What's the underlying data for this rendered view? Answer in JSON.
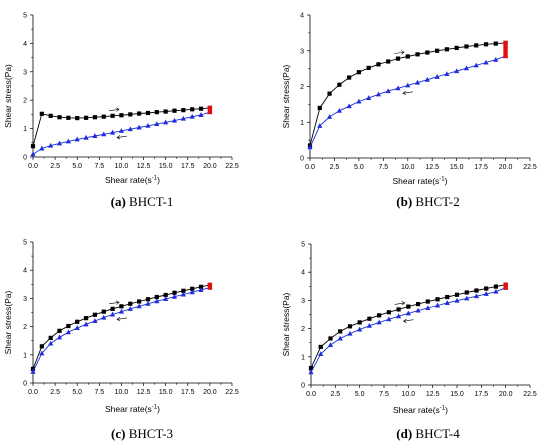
{
  "chart_data": [
    {
      "type": "line",
      "caption_letter": "(a)",
      "caption_text": " BHCT-1",
      "xlabel": "Shear rate(s",
      "xlabel_sup": "-1",
      "xlabel_end": ")",
      "ylabel": "Shear stress(Pa)",
      "xlim": [
        0,
        22.5
      ],
      "ylim": [
        0,
        5
      ],
      "xticks": [
        "0.0",
        "2.5",
        "5.0",
        "7.5",
        "10.0",
        "12.5",
        "15.0",
        "17.5",
        "20.0",
        "22.5"
      ],
      "yticks": [
        "0",
        "1",
        "2",
        "3",
        "4",
        "5"
      ],
      "series": [
        {
          "marker": "square",
          "color": "#000000",
          "x": [
            0,
            1,
            2,
            3,
            4,
            5,
            6,
            7,
            8,
            9,
            10,
            11,
            12,
            13,
            14,
            15,
            16,
            17,
            18,
            19,
            20
          ],
          "y": [
            0.38,
            1.52,
            1.45,
            1.4,
            1.38,
            1.37,
            1.38,
            1.4,
            1.42,
            1.45,
            1.47,
            1.5,
            1.53,
            1.55,
            1.58,
            1.6,
            1.63,
            1.65,
            1.68,
            1.7,
            1.73
          ]
        },
        {
          "marker": "triangle",
          "color": "#1f2fd8",
          "x": [
            0,
            1,
            2,
            3,
            4,
            5,
            6,
            7,
            8,
            9,
            10,
            11,
            12,
            13,
            14,
            15,
            16,
            17,
            18,
            19,
            20
          ],
          "y": [
            0.1,
            0.3,
            0.4,
            0.48,
            0.55,
            0.62,
            0.68,
            0.74,
            0.8,
            0.86,
            0.92,
            0.98,
            1.04,
            1.1,
            1.16,
            1.22,
            1.28,
            1.35,
            1.42,
            1.48,
            1.58
          ]
        }
      ]
    },
    {
      "type": "line",
      "caption_letter": "(b)",
      "caption_text": " BHCT-2",
      "xlabel": "Shear rate(s",
      "xlabel_sup": "-1",
      "xlabel_end": ")",
      "ylabel": "Shear stress(Pa)",
      "xlim": [
        0,
        22.5
      ],
      "ylim": [
        0,
        4
      ],
      "xticks": [
        "0.0",
        "2.5",
        "5.0",
        "7.5",
        "10.0",
        "12.5",
        "15.0",
        "17.5",
        "20.0",
        "22.5"
      ],
      "yticks": [
        "0",
        "1",
        "2",
        "3",
        "4"
      ],
      "series": [
        {
          "marker": "square",
          "color": "#000000",
          "x": [
            0,
            1,
            2,
            3,
            4,
            5,
            6,
            7,
            8,
            9,
            10,
            11,
            12,
            13,
            14,
            15,
            16,
            17,
            18,
            19,
            20
          ],
          "y": [
            0.35,
            1.4,
            1.8,
            2.05,
            2.25,
            2.4,
            2.52,
            2.62,
            2.7,
            2.78,
            2.84,
            2.9,
            2.95,
            3.0,
            3.04,
            3.08,
            3.12,
            3.15,
            3.18,
            3.2,
            3.22
          ]
        },
        {
          "marker": "triangle",
          "color": "#1f2fd8",
          "x": [
            0,
            1,
            2,
            3,
            4,
            5,
            6,
            7,
            8,
            9,
            10,
            11,
            12,
            13,
            14,
            15,
            16,
            17,
            18,
            19,
            20
          ],
          "y": [
            0.3,
            0.9,
            1.15,
            1.32,
            1.45,
            1.58,
            1.68,
            1.78,
            1.87,
            1.95,
            2.03,
            2.11,
            2.19,
            2.27,
            2.35,
            2.43,
            2.51,
            2.59,
            2.67,
            2.75,
            2.85
          ]
        }
      ]
    },
    {
      "type": "line",
      "caption_letter": "(c)",
      "caption_text": " BHCT-3",
      "xlabel": "Shear rate(s",
      "xlabel_sup": "-1",
      "xlabel_end": ")",
      "ylabel": "Shear stress(Pa)",
      "xlim": [
        0,
        22.5
      ],
      "ylim": [
        0,
        5
      ],
      "xticks": [
        "0.0",
        "2.5",
        "5.0",
        "7.5",
        "10.0",
        "12.5",
        "15.0",
        "17.5",
        "20.0",
        "22.5"
      ],
      "yticks": [
        "0",
        "1",
        "2",
        "3",
        "4",
        "5"
      ],
      "series": [
        {
          "marker": "square",
          "color": "#000000",
          "x": [
            0,
            1,
            2,
            3,
            4,
            5,
            6,
            7,
            8,
            9,
            10,
            11,
            12,
            13,
            14,
            15,
            16,
            17,
            18,
            19,
            20
          ],
          "y": [
            0.5,
            1.3,
            1.6,
            1.85,
            2.02,
            2.17,
            2.3,
            2.42,
            2.53,
            2.63,
            2.72,
            2.81,
            2.89,
            2.97,
            3.05,
            3.12,
            3.2,
            3.27,
            3.34,
            3.41,
            3.48
          ]
        },
        {
          "marker": "triangle",
          "color": "#1f2fd8",
          "x": [
            0,
            1,
            2,
            3,
            4,
            5,
            6,
            7,
            8,
            9,
            10,
            11,
            12,
            13,
            14,
            15,
            16,
            17,
            18,
            19,
            20
          ],
          "y": [
            0.4,
            1.05,
            1.4,
            1.62,
            1.8,
            1.95,
            2.08,
            2.2,
            2.32,
            2.43,
            2.53,
            2.63,
            2.72,
            2.81,
            2.9,
            2.98,
            3.06,
            3.14,
            3.22,
            3.3,
            3.38
          ]
        }
      ]
    },
    {
      "type": "line",
      "caption_letter": "(d)",
      "caption_text": " BHCT-4",
      "xlabel": "Shear rate(s",
      "xlabel_sup": "-1",
      "xlabel_end": ")",
      "ylabel": "Shear stress(Pa)",
      "xlim": [
        0,
        22.5
      ],
      "ylim": [
        0,
        5
      ],
      "xticks": [
        "0.0",
        "2.5",
        "5.0",
        "7.5",
        "10.0",
        "12.5",
        "15.0",
        "17.5",
        "20.0",
        "22.5"
      ],
      "yticks": [
        "0",
        "1",
        "2",
        "3",
        "4",
        "5"
      ],
      "series": [
        {
          "marker": "square",
          "color": "#000000",
          "x": [
            0,
            1,
            2,
            3,
            4,
            5,
            6,
            7,
            8,
            9,
            10,
            11,
            12,
            13,
            14,
            15,
            16,
            17,
            18,
            19,
            20
          ],
          "y": [
            0.6,
            1.35,
            1.65,
            1.9,
            2.08,
            2.22,
            2.35,
            2.47,
            2.58,
            2.68,
            2.78,
            2.87,
            2.96,
            3.04,
            3.12,
            3.2,
            3.28,
            3.35,
            3.42,
            3.49,
            3.56
          ]
        },
        {
          "marker": "triangle",
          "color": "#1f2fd8",
          "x": [
            0,
            1,
            2,
            3,
            4,
            5,
            6,
            7,
            8,
            9,
            10,
            11,
            12,
            13,
            14,
            15,
            16,
            17,
            18,
            19,
            20
          ],
          "y": [
            0.45,
            1.1,
            1.42,
            1.65,
            1.82,
            1.97,
            2.1,
            2.22,
            2.33,
            2.44,
            2.54,
            2.64,
            2.73,
            2.82,
            2.91,
            2.99,
            3.07,
            3.15,
            3.23,
            3.31,
            3.45
          ]
        }
      ]
    }
  ]
}
